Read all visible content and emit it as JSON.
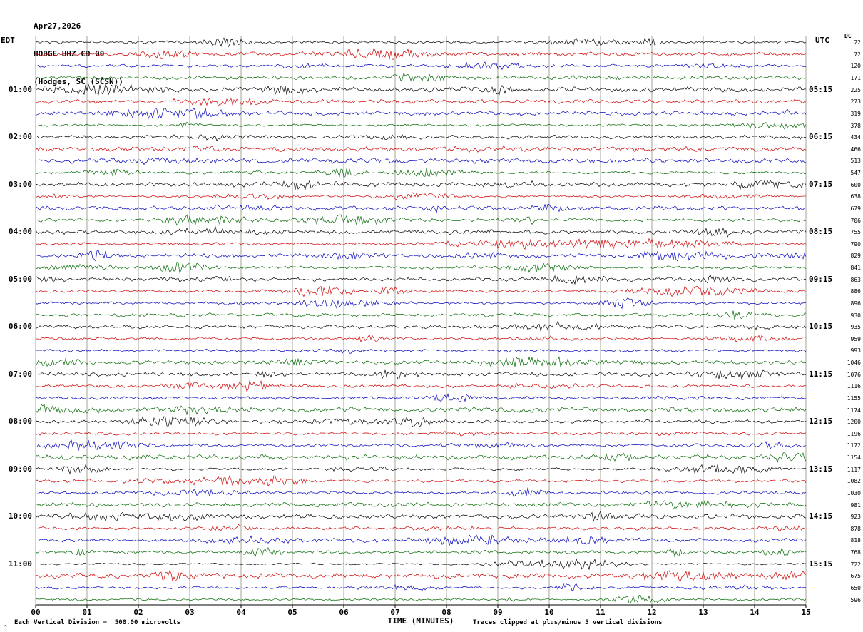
{
  "header": {
    "date": "Apr27,2026",
    "station_line": "HODGE HHZ CO 00",
    "location_line": "(Hodges, SC (SCSN))"
  },
  "axes": {
    "left_header": "EDT",
    "right_header": "UTC",
    "right_subheader": "DC",
    "xlabel": "TIME (MINUTES)"
  },
  "footer": {
    "left_note": "Each Vertical Division =  500.00 microvolts",
    "right_note": "Traces clipped at plus/minus 5 vertical divisions",
    "corner_mark": "^"
  },
  "chart_data": {
    "type": "line",
    "title": "HODGE HHZ CO 00 (Hodges, SC (SCSN)) Apr27,2026",
    "xlabel": "TIME (MINUTES)",
    "x_range_minutes": [
      0,
      15
    ],
    "x_tick_labels": [
      "00",
      "01",
      "02",
      "03",
      "04",
      "05",
      "06",
      "07",
      "08",
      "09",
      "10",
      "11",
      "12",
      "13",
      "14",
      "15"
    ],
    "num_rows": 48,
    "row_duration_minutes": 15,
    "start_time_edt": "00:00",
    "trace_color_cycle": [
      "#000000",
      "#cc0000",
      "#0000bb",
      "#006600"
    ],
    "hour_label_rows": [
      4,
      8,
      12,
      16,
      20,
      24,
      28,
      32,
      36,
      40,
      44
    ],
    "left_hour_labels_edt": [
      "01:00",
      "02:00",
      "03:00",
      "04:00",
      "05:00",
      "06:00",
      "07:00",
      "08:00",
      "09:00",
      "10:00",
      "11:00"
    ],
    "right_hour_labels_utc": [
      "05:15",
      "06:15",
      "07:15",
      "08:15",
      "09:15",
      "10:15",
      "11:15",
      "12:15",
      "13:15",
      "14:15",
      "15:15"
    ],
    "right_dc_offsets": [
      22,
      72,
      120,
      171,
      225,
      273,
      319,
      378,
      434,
      466,
      513,
      547,
      600,
      638,
      679,
      706,
      755,
      790,
      829,
      841,
      863,
      886,
      896,
      930,
      935,
      959,
      993,
      1046,
      1076,
      1116,
      1155,
      1174,
      1200,
      1196,
      1172,
      1154,
      1117,
      1082,
      1030,
      981,
      923,
      878,
      818,
      768,
      722,
      675,
      650,
      596
    ],
    "grid": "vertical line each minute",
    "waveform": "continuous ambient seismic noise traces with intermittent small bursts; amplitudes unlabeled; traces clipped at plus/minus 5 vertical divisions; 500.00 microvolts per vertical division"
  }
}
